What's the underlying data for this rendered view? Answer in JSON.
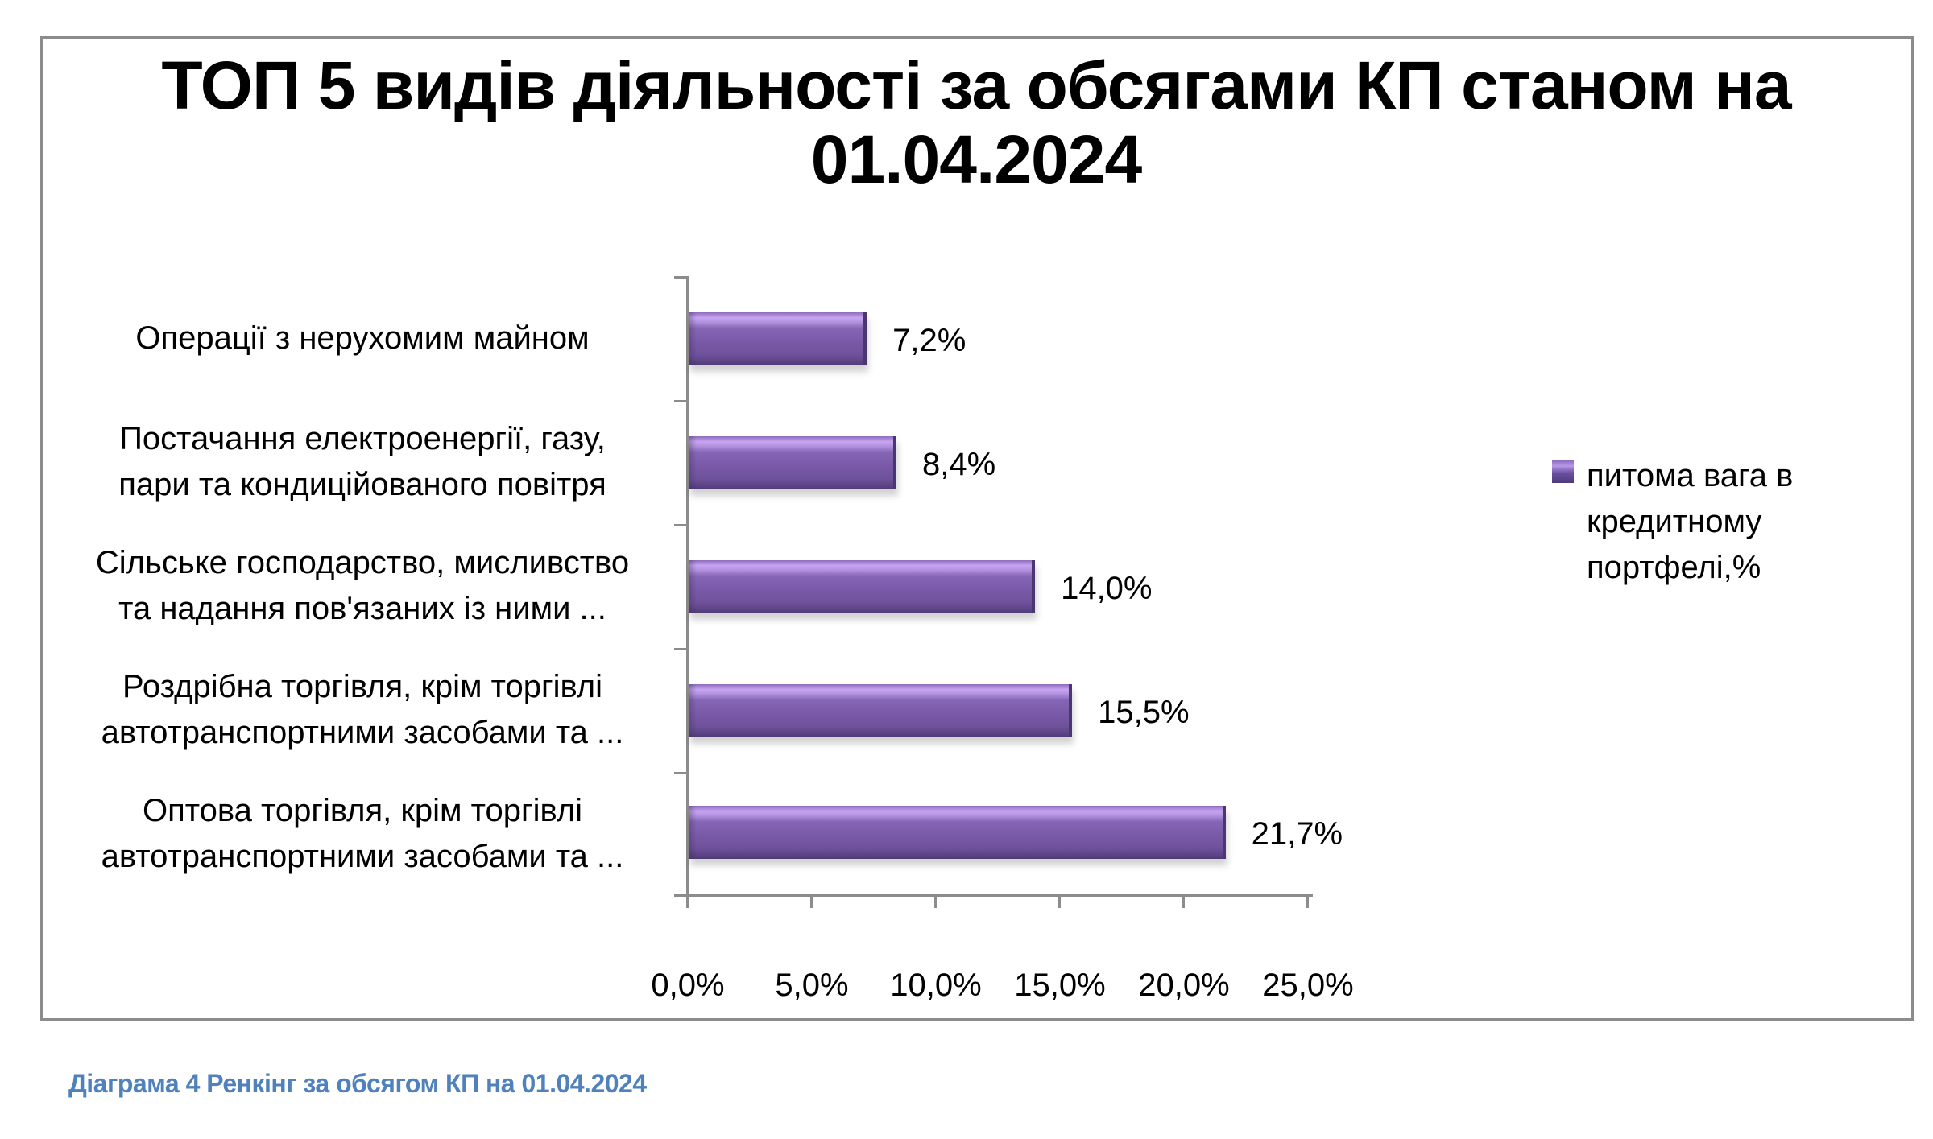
{
  "chart_data": {
    "type": "bar",
    "orientation": "horizontal",
    "title": "ТОП 5 видів діяльності за обсягами КП станом на 01.04.2024",
    "title_lines": [
      "ТОП 5 видів діяльності за обсягами КП станом на",
      "01.04.2024"
    ],
    "categories": [
      "Операції з нерухомим майном",
      "Постачання електроенергії, газу, пари та кондиційованого  повітря",
      "Сільське господарство, мисливство та надання пов'язаних із ними ...",
      "Роздрібна торгівля, крім торгівлі автотранспортними засобами та ...",
      "Оптова торгівля, крім торгівлі автотранспортними засобами та ..."
    ],
    "category_lines": [
      [
        "Операції з нерухомим майном"
      ],
      [
        "Постачання електроенергії, газу,",
        "пари та кондиційованого  повітря"
      ],
      [
        "Сільське господарство, мисливство",
        "та надання пов'язаних із ними ..."
      ],
      [
        "Роздрібна торгівля, крім торгівлі",
        "автотранспортними засобами та ..."
      ],
      [
        "Оптова торгівля, крім торгівлі",
        "автотранспортними засобами та ..."
      ]
    ],
    "series": [
      {
        "name": "питома вага в кредитному портфелі,%",
        "values": [
          7.2,
          8.4,
          14.0,
          15.5,
          21.7
        ],
        "labels": [
          "7,2%",
          "8,4%",
          "14,0%",
          "15,5%",
          "21,7%"
        ],
        "color": "#7b5aa8"
      }
    ],
    "xlabel": "",
    "ylabel": "",
    "xlim": [
      0,
      25
    ],
    "x_ticks": [
      0,
      5,
      10,
      15,
      20,
      25
    ],
    "x_tick_labels": [
      "0,0%",
      "5,0%",
      "10,0%",
      "15,0%",
      "20,0%",
      "25,0%"
    ],
    "grid": false,
    "legend_position": "right",
    "legend_lines": [
      "питома вага в",
      "кредитному",
      "портфелі,%"
    ]
  },
  "caption": "Діаграма 4 Ренкінг  за обсягом КП на 01.04.2024",
  "colors": {
    "bar": "#7b5aa8",
    "axis": "#8c8c8c",
    "caption": "#4f81bd",
    "frame": "#8c8c8c"
  }
}
